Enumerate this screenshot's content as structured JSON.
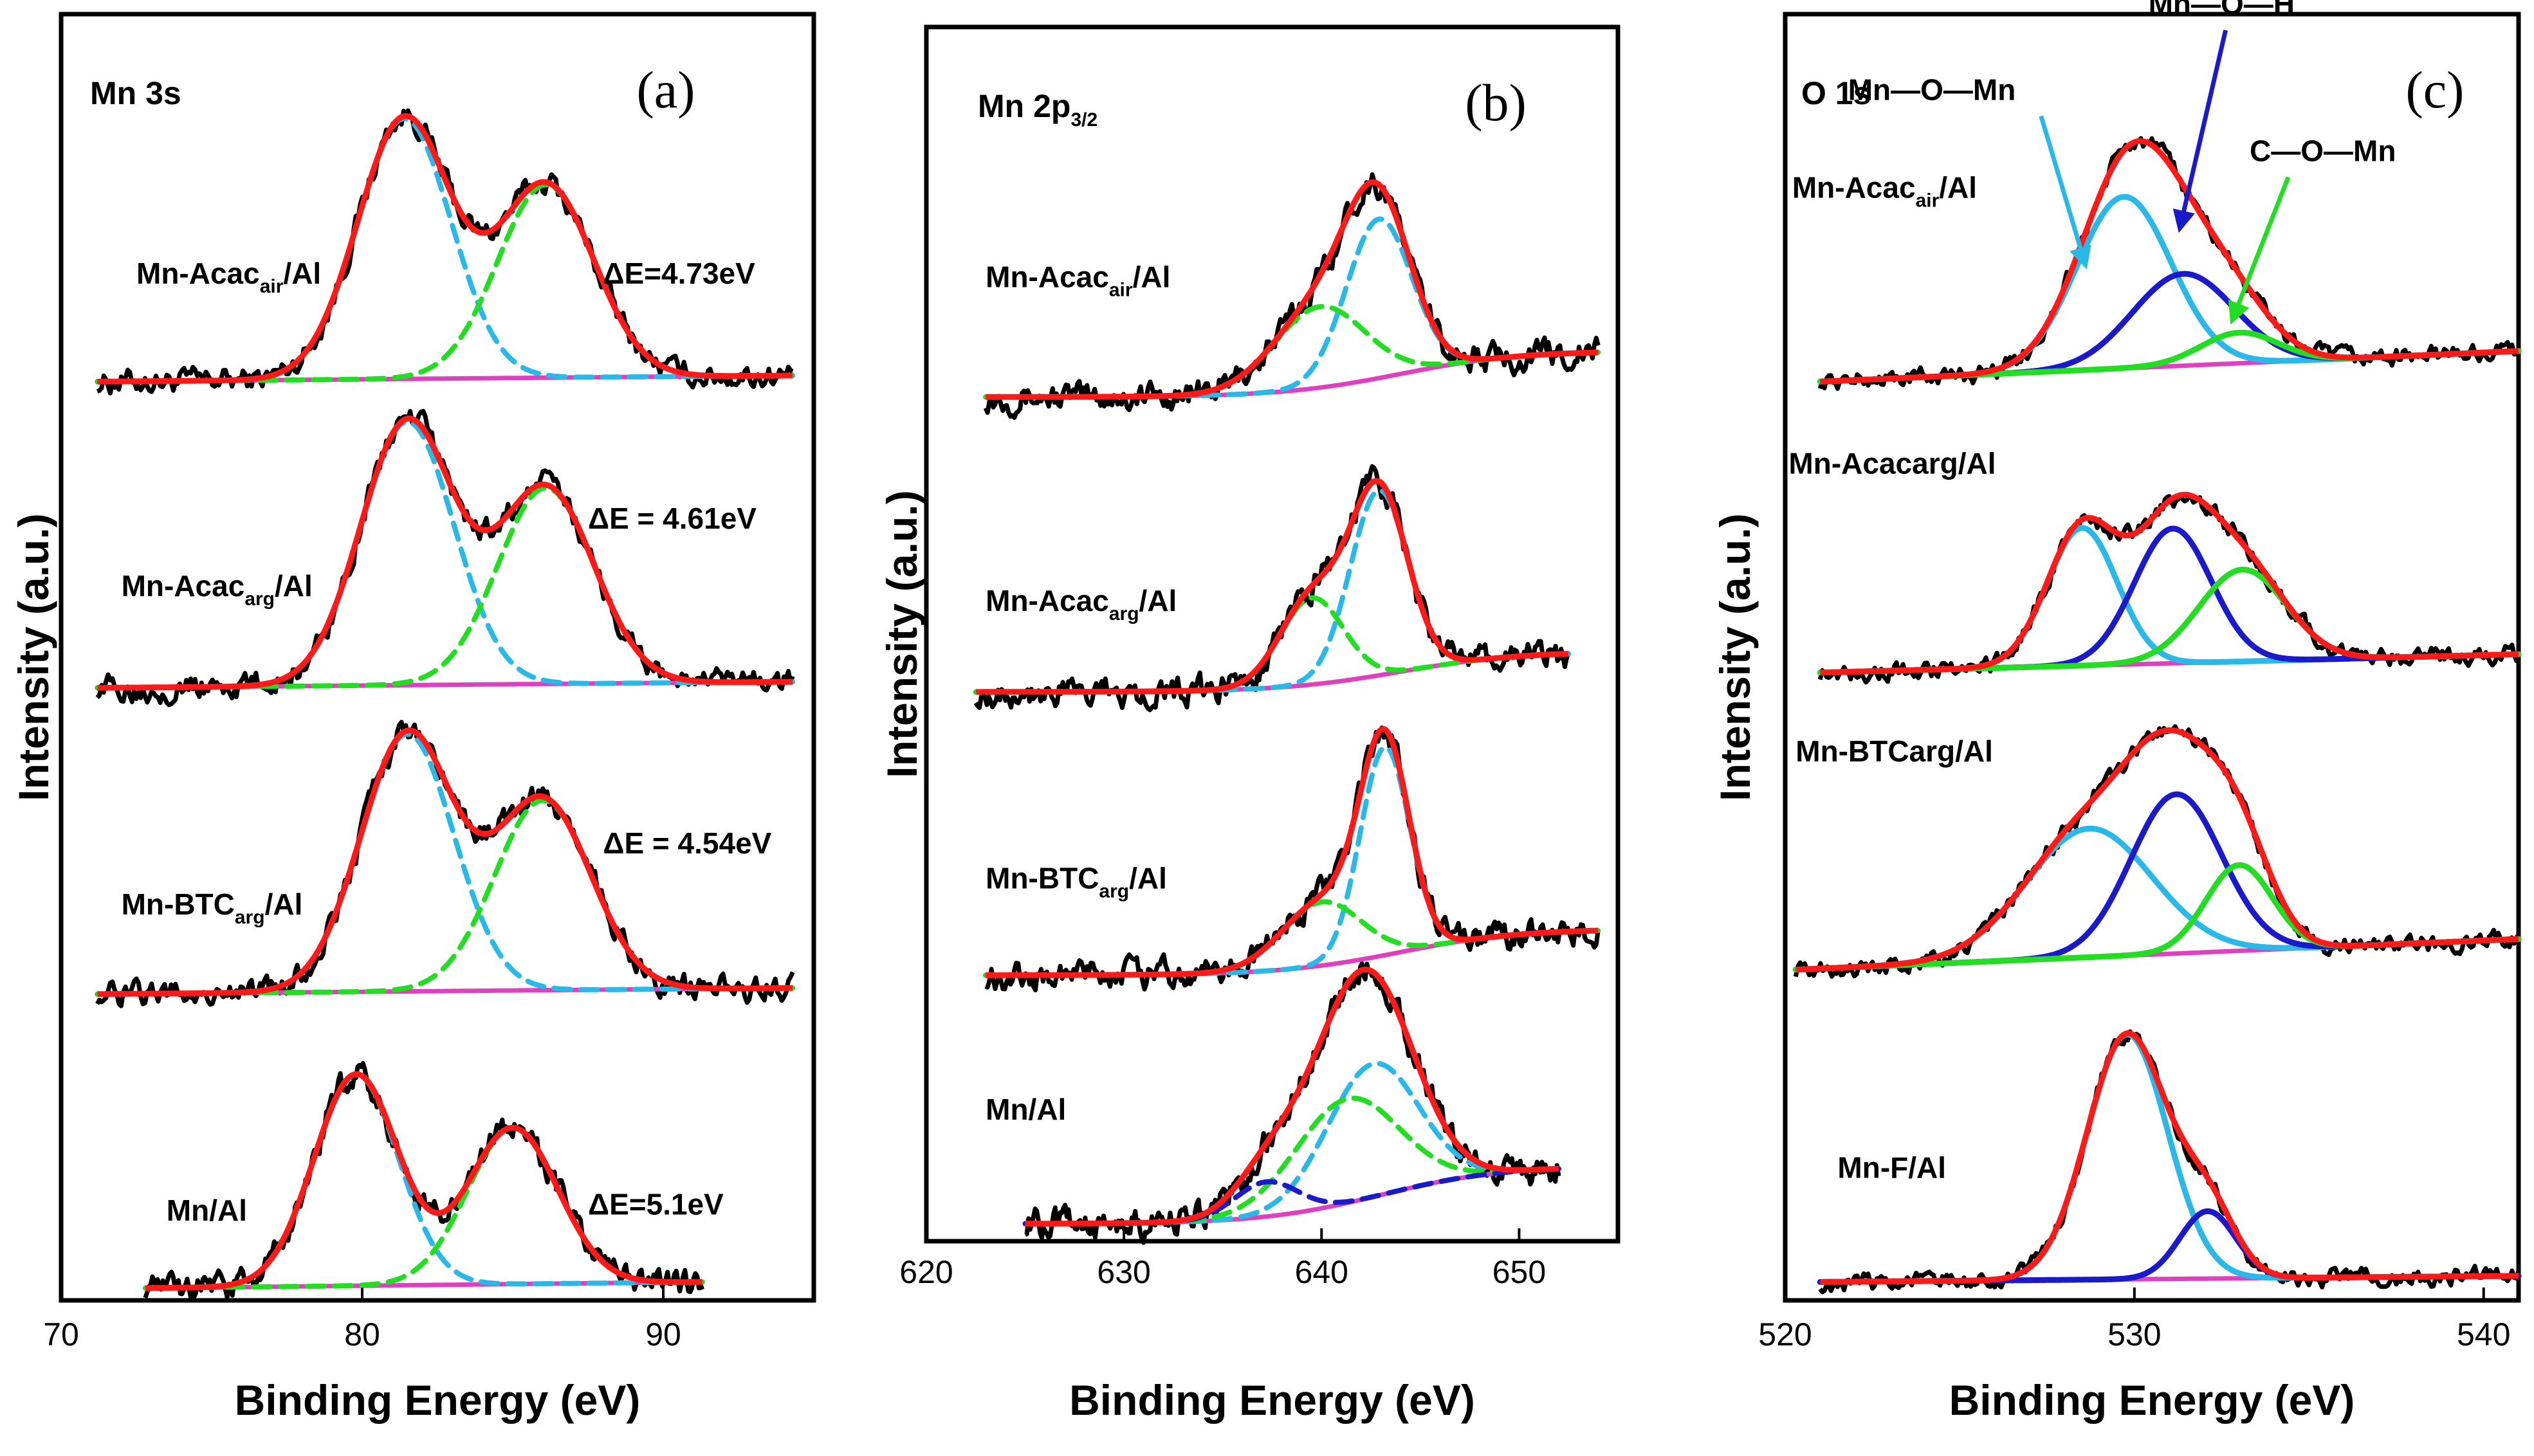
{
  "colors": {
    "raw": "#000000",
    "fit": "#ff1a1a",
    "background": "#e040c0",
    "peak_a": "#2ab8e8",
    "peak_b": "#22dd22",
    "peak_c": "#1a1acc",
    "frame": "#000000"
  },
  "chart_data": [
    {
      "type": "line",
      "panel_label": "(a)",
      "title": "Mn 3s",
      "xlabel": "Binding Energy (eV)",
      "ylabel": "Intensity (a.u.)",
      "xlim": [
        70,
        95
      ],
      "ylim": [
        0,
        4.2
      ],
      "xticks": [
        {
          "v": 70,
          "label": "70"
        },
        {
          "v": 80,
          "label": "80"
        },
        {
          "v": 90,
          "label": "90"
        }
      ],
      "noise": 0.025,
      "dashed_peaks": true,
      "series": [
        {
          "name": "Mn-Acac_air/Al",
          "main": "Mn-Acac",
          "sub": "air",
          "tail": "/Al",
          "label_x": 72.5,
          "label_y": 3.32,
          "annotation": "ΔE=4.73eV",
          "annotation_x": 88,
          "annotation_y": 3.32,
          "offset": 3.0,
          "x_range": [
            71.2,
            94.3
          ],
          "background": {
            "start": 0,
            "end": 0.02,
            "shape": "linear"
          },
          "peaks": [
            {
              "center": 81.4,
              "height": 0.85,
              "width": 1.55,
              "color": "peak_a"
            },
            {
              "center": 86.1,
              "height": 0.63,
              "width": 1.6,
              "color": "peak_b"
            }
          ]
        },
        {
          "name": "Mn-Acac_arg/Al",
          "main": "Mn-Acac",
          "sub": "arg",
          "tail": "/Al",
          "label_x": 72.0,
          "label_y": 2.3,
          "annotation": "ΔE = 4.61eV",
          "annotation_x": 87.5,
          "annotation_y": 2.52,
          "offset": 2.0,
          "x_range": [
            71.2,
            94.3
          ],
          "background": {
            "start": 0,
            "end": 0.02,
            "shape": "linear"
          },
          "peaks": [
            {
              "center": 81.5,
              "height": 0.86,
              "width": 1.55,
              "color": "peak_a"
            },
            {
              "center": 86.1,
              "height": 0.64,
              "width": 1.6,
              "color": "peak_b"
            }
          ]
        },
        {
          "name": "Mn-BTC_arg/Al",
          "main": "Mn-BTC",
          "sub": "arg",
          "tail": "/Al",
          "label_x": 72.0,
          "label_y": 1.26,
          "annotation": "ΔE = 4.54eV",
          "annotation_x": 88,
          "annotation_y": 1.46,
          "offset": 1.0,
          "x_range": [
            71.2,
            94.3
          ],
          "background": {
            "start": 0,
            "end": 0.02,
            "shape": "linear"
          },
          "peaks": [
            {
              "center": 81.5,
              "height": 0.84,
              "width": 1.55,
              "color": "peak_a"
            },
            {
              "center": 86.0,
              "height": 0.62,
              "width": 1.6,
              "color": "peak_b"
            }
          ]
        },
        {
          "name": "Mn/Al",
          "main": "Mn/Al",
          "sub": "",
          "tail": "",
          "label_x": 73.5,
          "label_y": 0.26,
          "annotation": "ΔE=5.1eV",
          "annotation_x": 87.5,
          "annotation_y": 0.28,
          "offset": 0.04,
          "x_range": [
            72.8,
            91.3
          ],
          "background": {
            "start": 0,
            "end": 0.02,
            "shape": "linear"
          },
          "peaks": [
            {
              "center": 79.8,
              "height": 0.69,
              "width": 1.4,
              "color": "peak_a"
            },
            {
              "center": 85.0,
              "height": 0.51,
              "width": 1.5,
              "color": "peak_b"
            }
          ]
        }
      ]
    },
    {
      "type": "line",
      "panel_label": "(b)",
      "title": "Mn 2p",
      "title_sub": "3/2",
      "xlabel": "Binding Energy (eV)",
      "ylabel": "Intensity (a.u.)",
      "xlim": [
        620,
        655
      ],
      "ylim": [
        0,
        4.2
      ],
      "xticks": [
        {
          "v": 620,
          "label": "620"
        },
        {
          "v": 630,
          "label": "630"
        },
        {
          "v": 640,
          "label": "640"
        },
        {
          "v": 650,
          "label": "650"
        }
      ],
      "noise": 0.03,
      "dashed_peaks": true,
      "series": [
        {
          "name": "Mn-Acac_air/Al",
          "main": "Mn-Acac",
          "sub": "air",
          "tail": "/Al",
          "label_x": 623,
          "label_y": 3.3,
          "offset": 2.92,
          "x_range": [
            623,
            654
          ],
          "background": {
            "start": 0,
            "end": 0.16,
            "shape": "sigmoid",
            "center": 644,
            "width": 3
          },
          "peaks": [
            {
              "center": 642.9,
              "height": 0.55,
              "width": 1.65,
              "color": "peak_a"
            },
            {
              "center": 639.9,
              "height": 0.28,
              "width": 2.3,
              "color": "peak_b"
            }
          ]
        },
        {
          "name": "Mn-Acac_arg/Al",
          "main": "Mn-Acac",
          "sub": "arg",
          "tail": "/Al",
          "label_x": 623,
          "label_y": 2.18,
          "offset": 1.9,
          "x_range": [
            622.5,
            652.5
          ],
          "background": {
            "start": 0,
            "end": 0.14,
            "shape": "sigmoid",
            "center": 644,
            "width": 3
          },
          "peaks": [
            {
              "center": 642.9,
              "height": 0.64,
              "width": 1.45,
              "color": "peak_a"
            },
            {
              "center": 639.5,
              "height": 0.3,
              "width": 1.6,
              "color": "peak_b"
            }
          ]
        },
        {
          "name": "Mn-BTC_arg/Al",
          "main": "Mn-BTC",
          "sub": "arg",
          "tail": "/Al",
          "label_x": 623,
          "label_y": 1.22,
          "offset": 0.92,
          "x_range": [
            623,
            654
          ],
          "background": {
            "start": 0,
            "end": 0.16,
            "shape": "sigmoid",
            "center": 644,
            "width": 3
          },
          "peaks": [
            {
              "center": 643.2,
              "height": 0.72,
              "width": 1.25,
              "color": "peak_a"
            },
            {
              "center": 640.0,
              "height": 0.22,
              "width": 2.0,
              "color": "peak_b"
            }
          ]
        },
        {
          "name": "Mn/Al",
          "main": "Mn/Al",
          "sub": "",
          "tail": "",
          "label_x": 623,
          "label_y": 0.42,
          "offset": 0.06,
          "x_range": [
            625,
            652
          ],
          "background": {
            "start": 0,
            "end": 0.2,
            "shape": "sigmoid",
            "center": 643,
            "width": 3
          },
          "peaks": [
            {
              "center": 642.6,
              "height": 0.46,
              "width": 2.3,
              "color": "peak_a"
            },
            {
              "center": 641.3,
              "height": 0.36,
              "width": 2.6,
              "color": "peak_b"
            },
            {
              "center": 637.2,
              "height": 0.12,
              "width": 1.6,
              "color": "peak_c"
            }
          ]
        }
      ]
    },
    {
      "type": "line",
      "panel_label": "(c)",
      "title": "O 1s",
      "xlabel": "Binding Energy (eV)",
      "ylabel": "Intensity (a.u.)",
      "xlim": [
        520,
        541
      ],
      "ylim": [
        0,
        4.2
      ],
      "xticks": [
        {
          "v": 520,
          "label": "520"
        },
        {
          "v": 530,
          "label": "530"
        },
        {
          "v": 540,
          "label": "540"
        }
      ],
      "noise": 0.018,
      "dashed_peaks": false,
      "series": [
        {
          "name": "Mn-Acac_air/Al",
          "main": "Mn-Acac",
          "sub": "air",
          "tail": "/Al",
          "label_x": 520.2,
          "label_y": 3.6,
          "offset": 3.0,
          "x_range": [
            521,
            541
          ],
          "background": {
            "start": 0,
            "end": 0.1,
            "shape": "linear"
          },
          "peaks": [
            {
              "center": 529.7,
              "height": 0.56,
              "width": 1.35,
              "color": "peak_a"
            },
            {
              "center": 531.4,
              "height": 0.3,
              "width": 1.45,
              "color": "peak_c"
            },
            {
              "center": 533.0,
              "height": 0.1,
              "width": 1.1,
              "color": "peak_b"
            }
          ]
        },
        {
          "name": "Mn-Acacarg/Al",
          "main": "Mn-Acacarg/Al",
          "sub": "",
          "tail": "",
          "label_x": 520.1,
          "label_y": 2.7,
          "offset": 2.05,
          "x_range": [
            521,
            541
          ],
          "background": {
            "start": 0,
            "end": 0.06,
            "shape": "linear"
          },
          "peaks": [
            {
              "center": 528.5,
              "height": 0.45,
              "width": 1.0,
              "color": "peak_a"
            },
            {
              "center": 531.1,
              "height": 0.44,
              "width": 1.1,
              "color": "peak_c"
            },
            {
              "center": 533.1,
              "height": 0.3,
              "width": 1.25,
              "color": "peak_b"
            }
          ]
        },
        {
          "name": "Mn-BTCarg/Al",
          "main": "Mn-BTCarg/Al",
          "sub": "",
          "tail": "",
          "label_x": 520.3,
          "label_y": 1.76,
          "offset": 1.08,
          "x_range": [
            520.3,
            541
          ],
          "background": {
            "start": 0,
            "end": 0.1,
            "shape": "linear"
          },
          "peaks": [
            {
              "center": 528.7,
              "height": 0.42,
              "width": 1.8,
              "color": "peak_a"
            },
            {
              "center": 531.2,
              "height": 0.52,
              "width": 1.3,
              "color": "peak_c"
            },
            {
              "center": 533.0,
              "height": 0.28,
              "width": 0.95,
              "color": "peak_b"
            }
          ]
        },
        {
          "name": "Mn-F/Al",
          "main": "Mn-F/Al",
          "sub": "",
          "tail": "",
          "label_x": 521.5,
          "label_y": 0.4,
          "offset": 0.06,
          "x_range": [
            521,
            541
          ],
          "background": {
            "start": 0,
            "end": 0.02,
            "shape": "linear"
          },
          "peaks": [
            {
              "center": 529.8,
              "height": 0.8,
              "width": 1.15,
              "color": "peak_a"
            },
            {
              "center": 532.1,
              "height": 0.22,
              "width": 0.8,
              "color": "peak_c"
            }
          ]
        }
      ],
      "annotations": [
        {
          "text": "Mn—O—Mn",
          "x": 521.8,
          "y": 3.92,
          "arrow_to": [
            528.6,
            3.38
          ],
          "color": "peak_a"
        },
        {
          "text": "Mn—O—H",
          "x": 530.4,
          "y": 4.2,
          "arrow_to": [
            531.3,
            3.5
          ],
          "color": "peak_c"
        },
        {
          "text": "C—O—Mn",
          "x": 533.3,
          "y": 3.72,
          "arrow_to": [
            532.8,
            3.2
          ],
          "color": "peak_b"
        }
      ]
    }
  ]
}
